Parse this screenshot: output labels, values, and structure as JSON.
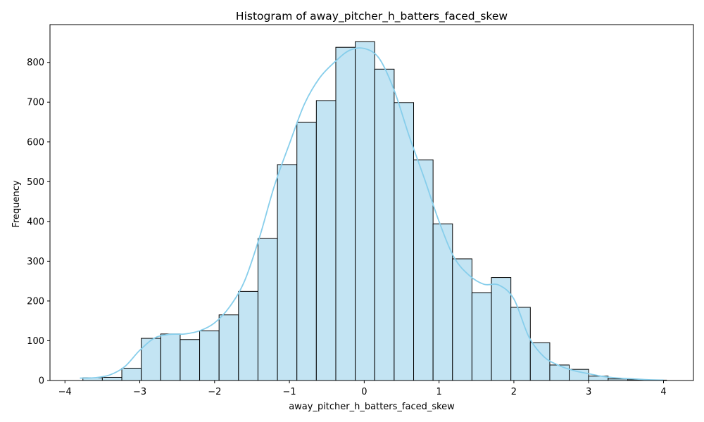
{
  "chart_data": {
    "type": "bar",
    "subtype": "histogram",
    "title": "Histogram of away_pitcher_h_batters_faced_skew",
    "xlabel": "away_pitcher_h_batters_faced_skew",
    "ylabel": "Frequency",
    "xlim": [
      -4.2,
      4.4
    ],
    "ylim": [
      0,
      895
    ],
    "xticks": [
      -4,
      -3,
      -2,
      -1,
      0,
      1,
      2,
      3,
      4
    ],
    "xtick_labels": [
      "−4",
      "−3",
      "−2",
      "−1",
      "0",
      "1",
      "2",
      "3",
      "4"
    ],
    "yticks": [
      0,
      100,
      200,
      300,
      400,
      500,
      600,
      700,
      800
    ],
    "bin_edges": [
      -3.76,
      -3.5,
      -3.24,
      -2.98,
      -2.72,
      -2.46,
      -2.2,
      -1.94,
      -1.68,
      -1.42,
      -1.16,
      -0.9,
      -0.64,
      -0.38,
      -0.12,
      0.14,
      0.4,
      0.66,
      0.92,
      1.18,
      1.44,
      1.7,
      1.96,
      2.22,
      2.48,
      2.74,
      3.0,
      3.26,
      3.52,
      3.78,
      4.04
    ],
    "values": [
      7,
      8,
      31,
      106,
      117,
      103,
      125,
      165,
      224,
      357,
      543,
      649,
      704,
      838,
      852,
      783,
      699,
      555,
      394,
      306,
      221,
      259,
      184,
      95,
      39,
      28,
      11,
      4,
      2,
      1
    ],
    "kde": {
      "x": [
        -3.8,
        -3.6,
        -3.4,
        -3.2,
        -3.0,
        -2.8,
        -2.6,
        -2.4,
        -2.2,
        -2.0,
        -1.8,
        -1.6,
        -1.4,
        -1.2,
        -1.0,
        -0.8,
        -0.6,
        -0.4,
        -0.2,
        0.0,
        0.2,
        0.4,
        0.6,
        0.8,
        1.0,
        1.2,
        1.4,
        1.6,
        1.8,
        2.0,
        2.2,
        2.4,
        2.6,
        2.8,
        3.0,
        3.2,
        3.4,
        3.6,
        3.8,
        4.0
      ],
      "y": [
        6,
        7,
        14,
        35,
        76,
        107,
        116,
        117,
        125,
        145,
        185,
        250,
        360,
        490,
        595,
        695,
        760,
        800,
        830,
        835,
        810,
        730,
        615,
        510,
        400,
        310,
        265,
        242,
        240,
        205,
        110,
        60,
        38,
        25,
        17,
        10,
        6,
        4,
        2,
        1
      ]
    },
    "bar_fill": "#c3e4f3",
    "bar_edge": "#000000",
    "kde_color": "#87ceeb",
    "grid": false,
    "legend": "none"
  }
}
